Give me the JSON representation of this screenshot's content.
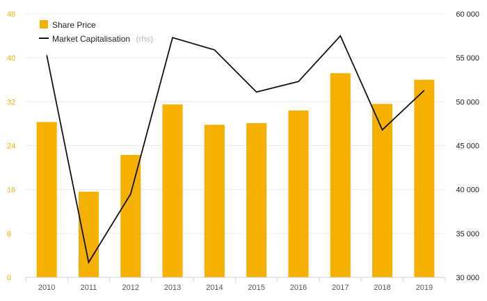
{
  "chart_data": {
    "type": "bar",
    "categories": [
      "2010",
      "2011",
      "2012",
      "2013",
      "2014",
      "2015",
      "2016",
      "2017",
      "2018",
      "2019"
    ],
    "series": [
      {
        "name": "Share Price",
        "type": "bar",
        "axis": "left",
        "color": "#f5b000",
        "values": [
          28.3,
          15.6,
          22.3,
          31.5,
          27.8,
          28.1,
          30.4,
          37.2,
          31.6,
          36.0
        ]
      },
      {
        "name": "Market Capitalisation",
        "name_suffix": "(rhs)",
        "type": "line",
        "axis": "right",
        "color": "#111111",
        "values": [
          55300,
          31700,
          39500,
          57300,
          55900,
          51100,
          52300,
          57500,
          46800,
          51300
        ]
      }
    ],
    "y_left": {
      "ylim": [
        0,
        48
      ],
      "ticks": [
        "0",
        "8",
        "16",
        "24",
        "32",
        "40",
        "48"
      ],
      "tick_color": "#f2b200"
    },
    "y_right": {
      "ylim": [
        30000,
        60000
      ],
      "ticks": [
        "30 000",
        "35 000",
        "40 000",
        "45 000",
        "50 000",
        "55 000",
        "60 000"
      ]
    },
    "grid": true,
    "legend_position": "top-left",
    "title": "",
    "xlabel": "",
    "ylabel": ""
  }
}
